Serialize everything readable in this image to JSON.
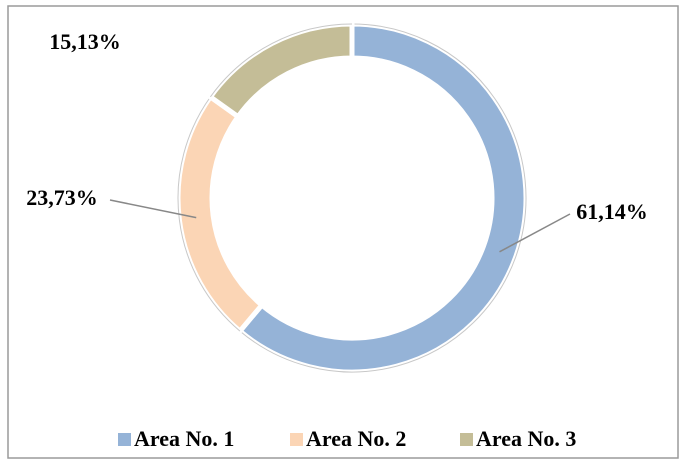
{
  "chart_data": {
    "type": "donut",
    "categories": [
      "Area No. 1",
      "Area No. 2",
      "Area No. 3"
    ],
    "values": [
      61.14,
      23.73,
      15.13
    ],
    "value_labels": [
      "61,14%",
      "23,73%",
      "15,13%"
    ],
    "colors": [
      "#95b3d7",
      "#fbd5b5",
      "#c4bd97"
    ],
    "legend": "bottom"
  }
}
